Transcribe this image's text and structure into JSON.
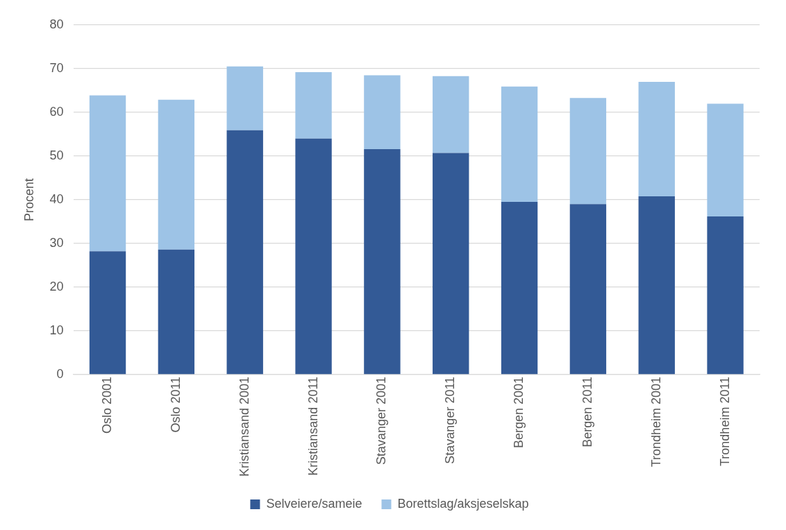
{
  "chart_data": {
    "type": "bar",
    "stacked": true,
    "ylabel": "Procent",
    "categories": [
      "Oslo 2001",
      "Oslo 2011",
      "Kristiansand 2001",
      "Kristiansand 2011",
      "Stavanger 2001",
      "Stavanger 2011",
      "Bergen 2001",
      "Bergen 2011",
      "Trondheim 2001",
      "Trondheim 2011"
    ],
    "series": [
      {
        "name": "Selveiere/sameie",
        "color": "#335a96",
        "values": [
          28.2,
          28.6,
          55.9,
          54.0,
          51.6,
          50.7,
          39.5,
          39.0,
          40.8,
          36.2
        ]
      },
      {
        "name": "Borettslag/aksjeselskap",
        "color": "#9dc3e6",
        "values": [
          35.7,
          34.3,
          14.6,
          15.2,
          16.9,
          17.6,
          26.4,
          24.3,
          26.2,
          25.8
        ]
      }
    ],
    "ylim": [
      0,
      80
    ],
    "yticks": [
      0,
      10,
      20,
      30,
      40,
      50,
      60,
      70,
      80
    ],
    "grid": "y",
    "legend": "bottom"
  }
}
